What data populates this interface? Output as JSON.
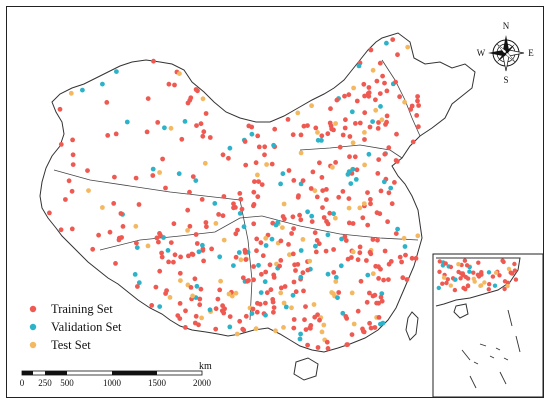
{
  "legend": {
    "items": [
      {
        "label": "Training Set",
        "color": "#ee5a52"
      },
      {
        "label": "Validation Set",
        "color": "#2db3c9"
      },
      {
        "label": "Test Set",
        "color": "#f4b860"
      }
    ]
  },
  "scale_bar": {
    "unit": "km",
    "ticks": [
      "0",
      "250",
      "500",
      "1000",
      "1500",
      "2000"
    ]
  },
  "compass": {
    "north": "N",
    "south": "S",
    "east": "E",
    "west": "W"
  },
  "colors": {
    "border": "#333333",
    "frame": "#222222",
    "background": "#ffffff"
  }
}
